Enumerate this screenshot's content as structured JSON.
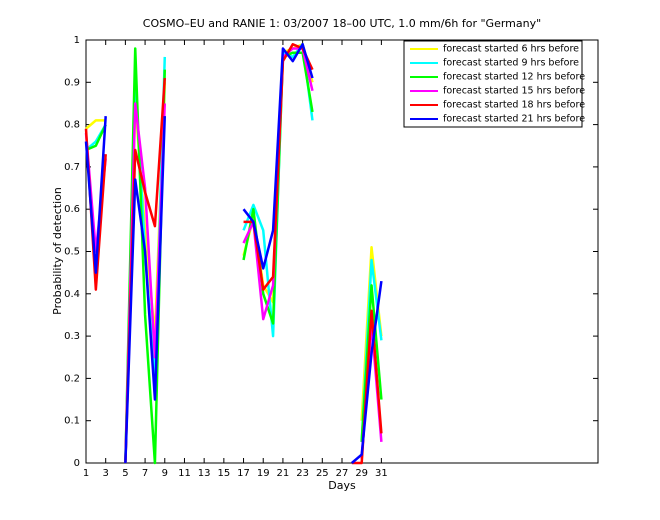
{
  "chart_data": {
    "type": "line",
    "title": "COSMO–EU and RANIE 1: 03/2007 18–00 UTC, 1.0 mm/6h for \"Germany\"",
    "xlabel": "Days",
    "ylabel": "Probability of detection",
    "x": [
      1,
      2,
      3,
      4,
      5,
      6,
      7,
      8,
      9,
      10,
      11,
      12,
      13,
      14,
      15,
      16,
      17,
      18,
      19,
      20,
      21,
      22,
      23,
      24,
      25,
      26,
      27,
      28,
      29,
      30,
      31
    ],
    "xlim": [
      1,
      53
    ],
    "ylim": [
      0,
      1
    ],
    "xticks": [
      1,
      3,
      5,
      7,
      9,
      11,
      13,
      15,
      17,
      19,
      21,
      23,
      25,
      27,
      29,
      31
    ],
    "yticks": [
      0,
      0.1,
      0.2,
      0.3,
      0.4,
      0.5,
      0.6,
      0.7,
      0.8,
      0.9,
      1
    ],
    "legend": "top-right",
    "series": [
      {
        "name": "forecast started 6 hrs before",
        "color": "#ffff00",
        "values": [
          0.79,
          0.81,
          0.81,
          null,
          0.0,
          0.85,
          0.55,
          0.3,
          0.9,
          null,
          null,
          null,
          null,
          null,
          null,
          null,
          0.49,
          0.58,
          0.42,
          0.38,
          0.97,
          0.98,
          0.99,
          0.9,
          null,
          null,
          null,
          null,
          0.1,
          0.51,
          0.3
        ]
      },
      {
        "name": "forecast started 9 hrs before",
        "color": "#00ffff",
        "values": [
          0.74,
          0.76,
          0.8,
          null,
          0.0,
          0.9,
          0.5,
          0.2,
          0.96,
          null,
          null,
          null,
          null,
          null,
          null,
          null,
          0.55,
          0.61,
          0.55,
          0.3,
          0.97,
          0.96,
          0.99,
          0.81,
          null,
          null,
          null,
          null,
          0.05,
          0.48,
          0.29
        ]
      },
      {
        "name": "forecast started 12 hrs before",
        "color": "#00ff00",
        "values": [
          0.74,
          0.75,
          0.8,
          null,
          0.0,
          0.98,
          0.35,
          0.0,
          0.93,
          null,
          null,
          null,
          null,
          null,
          null,
          null,
          0.48,
          0.6,
          0.4,
          0.33,
          0.96,
          0.97,
          0.97,
          0.83,
          null,
          null,
          null,
          null,
          0.05,
          0.42,
          0.15
        ]
      },
      {
        "name": "forecast started 15 hrs before",
        "color": "#ff00ff",
        "values": [
          0.78,
          0.5,
          0.72,
          null,
          0.0,
          0.85,
          0.65,
          0.25,
          0.85,
          null,
          null,
          null,
          null,
          null,
          null,
          null,
          0.52,
          0.57,
          0.34,
          0.42,
          0.96,
          0.98,
          0.98,
          0.88,
          null,
          null,
          null,
          null,
          0.01,
          0.33,
          0.05
        ]
      },
      {
        "name": "forecast started 18 hrs before",
        "color": "#ff0000",
        "values": [
          0.79,
          0.41,
          0.73,
          null,
          0.0,
          0.74,
          0.64,
          0.56,
          0.91,
          null,
          null,
          null,
          null,
          null,
          null,
          null,
          0.57,
          0.57,
          0.41,
          0.44,
          0.95,
          0.99,
          0.98,
          0.93,
          null,
          null,
          null,
          0.0,
          0.0,
          0.36,
          0.07
        ]
      },
      {
        "name": "forecast started 21 hrs before",
        "color": "#0000ff",
        "values": [
          0.76,
          0.45,
          0.82,
          null,
          0.0,
          0.67,
          0.5,
          0.15,
          0.82,
          null,
          null,
          null,
          null,
          null,
          null,
          null,
          0.6,
          0.57,
          0.46,
          0.55,
          0.98,
          0.95,
          0.99,
          0.91,
          null,
          null,
          null,
          0.0,
          0.02,
          0.26,
          0.43
        ]
      }
    ]
  }
}
